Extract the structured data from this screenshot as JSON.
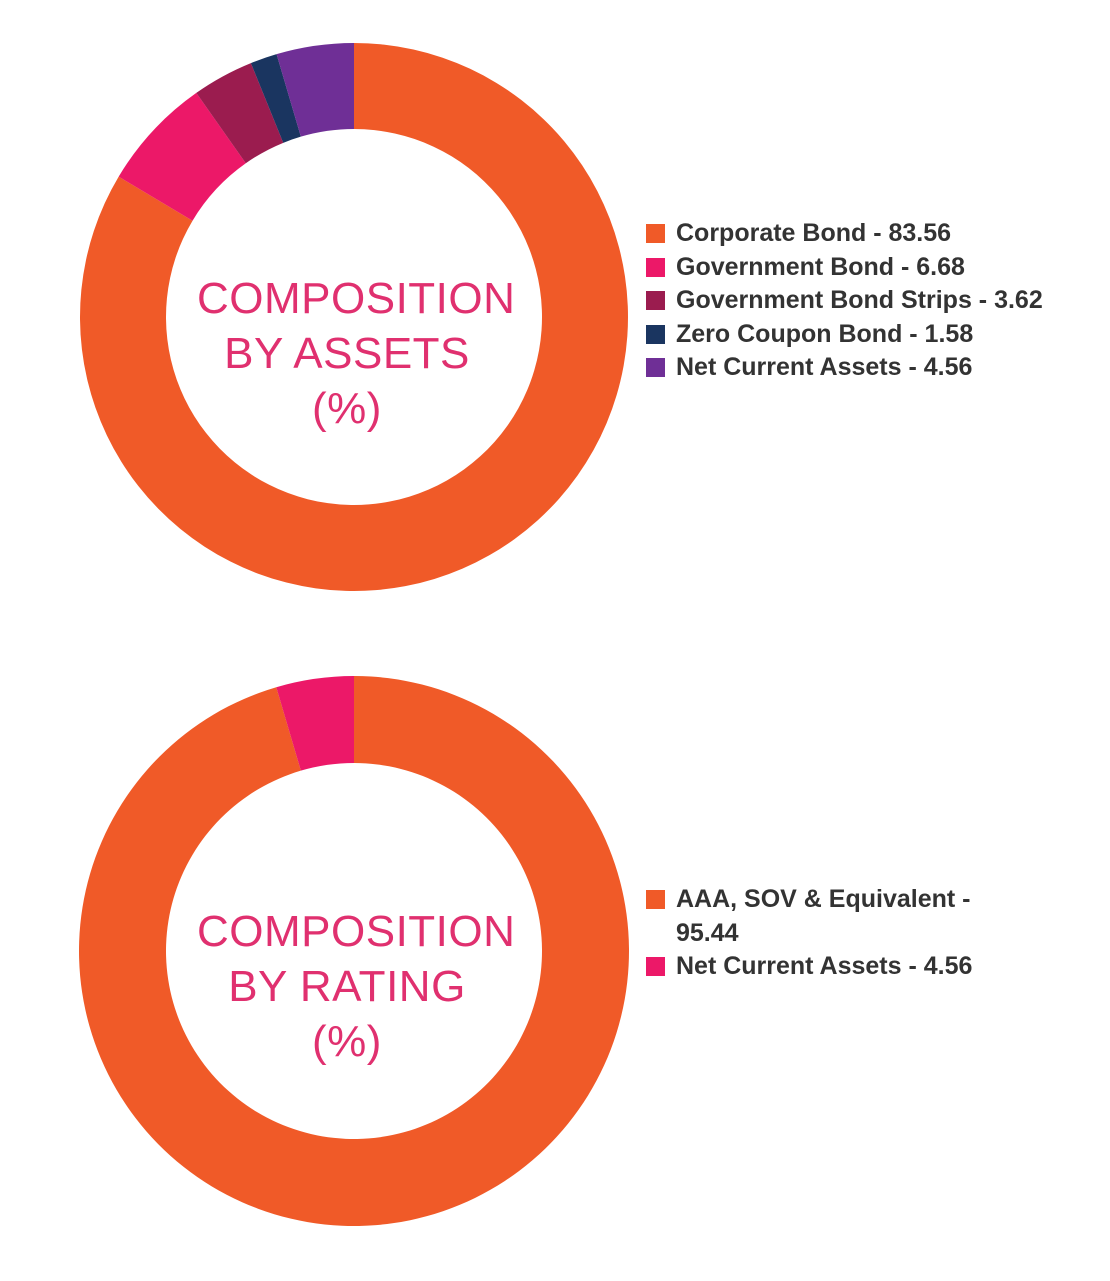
{
  "chart_data": [
    {
      "type": "pie",
      "donut": true,
      "title_lines": [
        "COMPOSITION",
        "BY ASSETS",
        "(%)"
      ],
      "slices": [
        {
          "label": "Corporate Bond",
          "value": 83.56,
          "color": "#f05a28",
          "legend_text": "Corporate Bond - 83.56"
        },
        {
          "label": "Government Bond",
          "value": 6.68,
          "color": "#ec1868",
          "legend_text": "Government Bond - 6.68"
        },
        {
          "label": "Government Bond Strips",
          "value": 3.62,
          "color": "#9b1c4f",
          "legend_text": "Government Bond Strips - 3.62"
        },
        {
          "label": "Zero Coupon Bond",
          "value": 1.58,
          "color": "#1a3560",
          "legend_text": "Zero Coupon Bond - 1.58"
        },
        {
          "label": "Net Current Assets",
          "value": 4.56,
          "color": "#6f2f96",
          "legend_text": "Net Current Assets - 4.56"
        }
      ],
      "legend_position": "right"
    },
    {
      "type": "pie",
      "donut": true,
      "title_lines": [
        "COMPOSITION",
        "BY RATING",
        "(%)"
      ],
      "slices": [
        {
          "label": "AAA, SOV & Equivalent",
          "value": 95.44,
          "color": "#f05a28",
          "legend_text": "AAA, SOV & Equivalent - 95.44"
        },
        {
          "label": "Net Current Assets",
          "value": 4.56,
          "color": "#ec1868",
          "legend_text": "Net Current Assets - 4.56"
        }
      ],
      "legend_position": "right"
    }
  ]
}
